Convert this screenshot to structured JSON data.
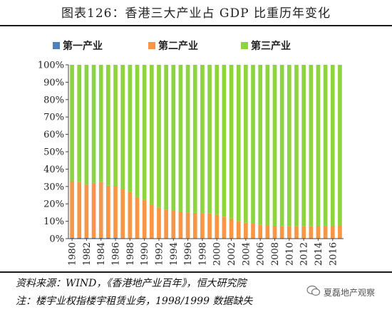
{
  "title": "图表126：香港三大产业占 GDP 比重历年变化",
  "source_note": "资料来源：WIND，《香港地产业百年》，恒大研究院",
  "footnote": "注：楼宇业权指楼宇租赁业务，1998/1999 数据缺失",
  "watermark": "夏磊地产观察",
  "colors": {
    "primary": "#4f81bd",
    "secondary": "#f79646",
    "tertiary": "#8ed43f"
  },
  "chart_data": {
    "type": "bar",
    "stacked": true,
    "ylim": [
      0,
      100
    ],
    "yticks": [
      "0%",
      "10%",
      "20%",
      "30%",
      "40%",
      "50%",
      "60%",
      "70%",
      "80%",
      "90%",
      "100%"
    ],
    "legend_position": "top",
    "x": [
      1980,
      1981,
      1982,
      1983,
      1984,
      1985,
      1986,
      1987,
      1988,
      1989,
      1990,
      1991,
      1992,
      1993,
      1994,
      1995,
      1996,
      1997,
      1998,
      1999,
      2000,
      2001,
      2002,
      2003,
      2004,
      2005,
      2006,
      2007,
      2008,
      2009,
      2010,
      2011,
      2012,
      2013,
      2014,
      2015,
      2016,
      2017
    ],
    "xtick_labels": [
      "1980",
      "1982",
      "1984",
      "1986",
      "1988",
      "1990",
      "1992",
      "1994",
      "1996",
      "1998",
      "2000",
      "2002",
      "2004",
      "2006",
      "2008",
      "2010",
      "2012",
      "2014",
      "2016"
    ],
    "series": [
      {
        "name": "第一产业",
        "values": [
          0.5,
          0.5,
          0.5,
          0.5,
          0.5,
          0.4,
          0.4,
          0.3,
          0.3,
          0.3,
          0.3,
          0.2,
          0.2,
          0.2,
          0.2,
          0.1,
          0.1,
          0.1,
          0.1,
          0.1,
          0.1,
          0.1,
          0.1,
          0.1,
          0.1,
          0.1,
          0.1,
          0.1,
          0.1,
          0.1,
          0.1,
          0.1,
          0.1,
          0.1,
          0.1,
          0.1,
          0.1,
          0.1
        ]
      },
      {
        "name": "第二产业",
        "values": [
          32.5,
          32.0,
          30.5,
          31.5,
          32.0,
          30.0,
          29.5,
          28.0,
          26.5,
          23.5,
          22.0,
          19.5,
          17.5,
          16.5,
          16.0,
          15.5,
          15.0,
          14.7,
          14.5,
          14.3,
          13.5,
          12.5,
          11.5,
          10.0,
          9.0,
          8.5,
          7.8,
          7.5,
          7.3,
          7.0,
          7.0,
          7.0,
          7.0,
          7.0,
          7.3,
          7.3,
          7.3,
          7.5
        ]
      },
      {
        "name": "第三产业",
        "values": [
          67.0,
          67.5,
          69.0,
          68.0,
          67.5,
          69.6,
          70.1,
          71.7,
          73.2,
          76.2,
          77.7,
          80.3,
          82.3,
          83.3,
          83.8,
          84.4,
          84.9,
          85.2,
          85.4,
          85.6,
          86.4,
          87.4,
          88.4,
          89.9,
          90.9,
          91.4,
          92.1,
          92.4,
          92.6,
          92.9,
          92.9,
          92.9,
          92.9,
          92.9,
          92.6,
          92.6,
          92.6,
          92.4
        ]
      }
    ]
  }
}
